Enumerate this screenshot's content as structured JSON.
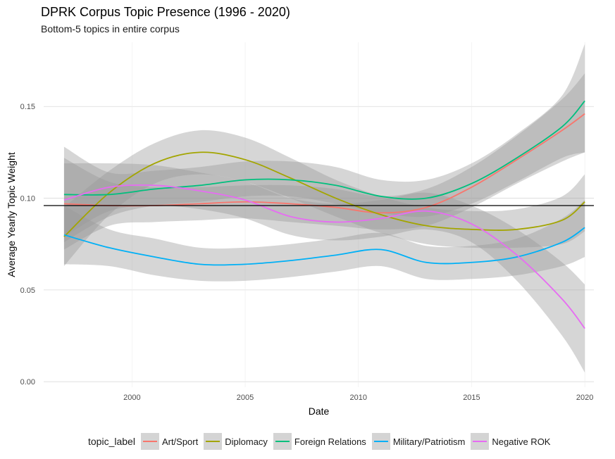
{
  "title": "DPRK Corpus Topic Presence (1996 - 2020)",
  "subtitle": "Bottom-5 topics in entire corpus",
  "chart_data": {
    "type": "line",
    "xlabel": "Date",
    "ylabel": "Average Yearly Topic Weight",
    "xlim": [
      1996.1,
      2020.4
    ],
    "ylim": [
      -0.003,
      0.185
    ],
    "x_ticks": [
      2000,
      2005,
      2010,
      2015,
      2020
    ],
    "x_tick_labels": [
      "2000",
      "2005",
      "2010",
      "2015",
      "2020"
    ],
    "y_ticks": [
      0.0,
      0.05,
      0.1,
      0.15
    ],
    "y_tick_labels": [
      "0.00",
      "0.05",
      "0.10",
      "0.15"
    ],
    "grid": true,
    "legend_position": "bottom",
    "legend_title": "topic_label",
    "hline": 0.096,
    "x": [
      1997,
      1999,
      2001,
      2003,
      2005,
      2007,
      2009,
      2011,
      2013,
      2015,
      2017,
      2019,
      2020
    ],
    "series": [
      {
        "name": "Art/Sport",
        "color": "#F8766D",
        "values": [
          0.097,
          0.096,
          0.096,
          0.097,
          0.098,
          0.097,
          0.095,
          0.092,
          0.095,
          0.106,
          0.121,
          0.137,
          0.146
        ],
        "ci_lower": [
          0.072,
          0.085,
          0.087,
          0.088,
          0.089,
          0.087,
          0.085,
          0.083,
          0.085,
          0.095,
          0.108,
          0.12,
          0.125
        ],
        "ci_upper": [
          0.122,
          0.109,
          0.106,
          0.106,
          0.107,
          0.107,
          0.105,
          0.101,
          0.105,
          0.117,
          0.134,
          0.154,
          0.168
        ]
      },
      {
        "name": "Diplomacy",
        "color": "#A3A500",
        "values": [
          0.079,
          0.103,
          0.119,
          0.125,
          0.121,
          0.111,
          0.1,
          0.091,
          0.085,
          0.083,
          0.083,
          0.088,
          0.098
        ],
        "ci_lower": [
          0.063,
          0.091,
          0.108,
          0.113,
          0.109,
          0.1,
          0.09,
          0.081,
          0.075,
          0.073,
          0.073,
          0.075,
          0.082
        ],
        "ci_upper": [
          0.095,
          0.115,
          0.13,
          0.137,
          0.133,
          0.122,
          0.11,
          0.101,
          0.095,
          0.093,
          0.094,
          0.101,
          0.113
        ]
      },
      {
        "name": "Foreign Relations",
        "color": "#00BF7D",
        "values": [
          0.102,
          0.102,
          0.105,
          0.107,
          0.11,
          0.11,
          0.107,
          0.101,
          0.1,
          0.108,
          0.122,
          0.139,
          0.153
        ],
        "ci_lower": [
          0.076,
          0.09,
          0.096,
          0.098,
          0.101,
          0.101,
          0.097,
          0.092,
          0.09,
          0.097,
          0.109,
          0.122,
          0.125
        ],
        "ci_upper": [
          0.128,
          0.114,
          0.115,
          0.117,
          0.12,
          0.12,
          0.117,
          0.11,
          0.11,
          0.119,
          0.135,
          0.156,
          0.184
        ]
      },
      {
        "name": "Military/Patriotism",
        "color": "#00B0F6",
        "values": [
          0.08,
          0.073,
          0.068,
          0.064,
          0.064,
          0.066,
          0.069,
          0.072,
          0.065,
          0.065,
          0.068,
          0.076,
          0.084
        ],
        "ci_lower": [
          0.064,
          0.063,
          0.058,
          0.055,
          0.055,
          0.057,
          0.06,
          0.063,
          0.056,
          0.056,
          0.058,
          0.063,
          0.068
        ],
        "ci_upper": [
          0.096,
          0.083,
          0.078,
          0.073,
          0.073,
          0.075,
          0.078,
          0.081,
          0.074,
          0.074,
          0.078,
          0.089,
          0.099
        ]
      },
      {
        "name": "Negative ROK",
        "color": "#E76BF3",
        "values": [
          0.099,
          0.106,
          0.107,
          0.104,
          0.099,
          0.09,
          0.087,
          0.089,
          0.093,
          0.086,
          0.069,
          0.045,
          0.029
        ],
        "ci_lower": [
          0.079,
          0.093,
          0.096,
          0.094,
          0.089,
          0.08,
          0.077,
          0.079,
          0.083,
          0.076,
          0.055,
          0.025,
          0.005
        ],
        "ci_upper": [
          0.119,
          0.119,
          0.118,
          0.114,
          0.109,
          0.1,
          0.097,
          0.099,
          0.103,
          0.096,
          0.083,
          0.065,
          0.053
        ]
      }
    ]
  }
}
